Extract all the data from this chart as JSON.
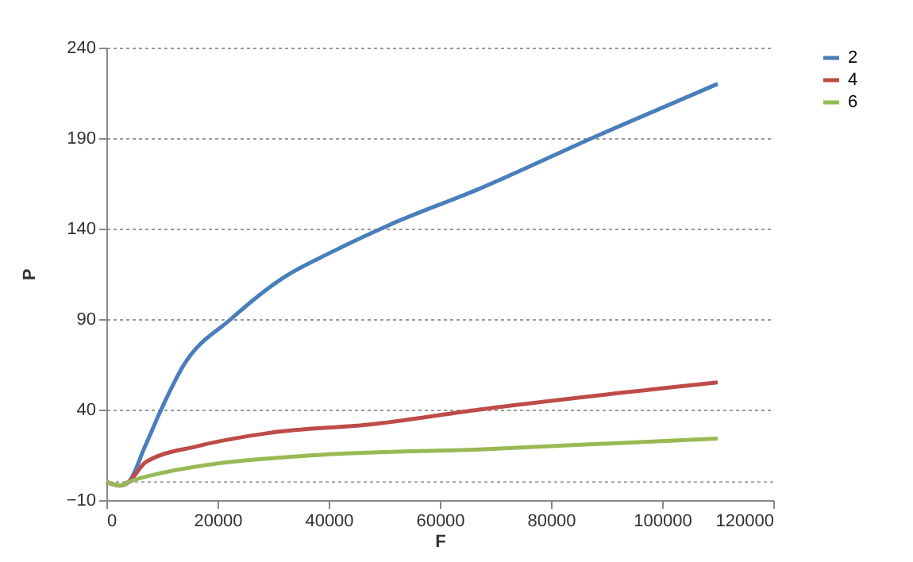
{
  "chart_data": {
    "type": "line",
    "xlabel": "F",
    "ylabel": "P",
    "xlim": [
      0,
      120000
    ],
    "xticks": [
      0,
      20000,
      40000,
      60000,
      80000,
      100000,
      120000
    ],
    "ylim": [
      -10,
      240
    ],
    "yticks": [
      -10,
      40,
      90,
      140,
      190,
      240
    ],
    "grid": "y",
    "legend": "right",
    "line_style": "solid",
    "ref_lines": [
      {
        "axis": "y",
        "value": 0,
        "color": "#a0a0a0",
        "line_style": "dotted"
      }
    ],
    "series": [
      {
        "name": "2",
        "color": "#4a7ebb",
        "x": [
          0,
          2500,
          4000,
          7000,
          10000,
          13800,
          22400,
          31900,
          40500,
          50900,
          67100,
          88100,
          110000
        ],
        "values": [
          0,
          -2,
          0,
          20,
          41,
          64,
          90,
          113,
          127,
          142,
          162,
          191,
          220
        ]
      },
      {
        "name": "4",
        "color": "#be4b48",
        "x": [
          0,
          2500,
          4000,
          7100,
          16700,
          29000,
          48100,
          67100,
          110000
        ],
        "values": [
          0,
          -2,
          0,
          11,
          20,
          27,
          32,
          40,
          55
        ]
      },
      {
        "name": "6",
        "color": "#98b954",
        "x": [
          0,
          2500,
          4000,
          10000,
          19500,
          38600,
          67100,
          110000
        ],
        "values": [
          0,
          -2,
          0,
          5,
          10,
          15,
          18,
          24
        ]
      }
    ]
  }
}
